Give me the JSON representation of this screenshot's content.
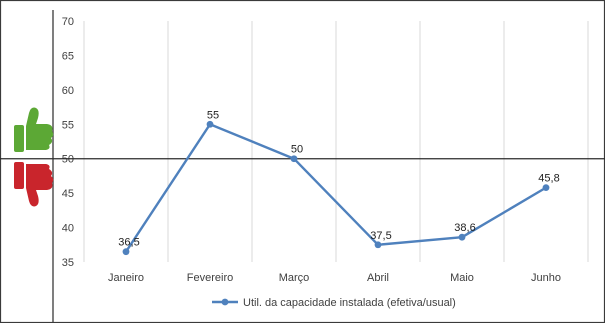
{
  "chart_data": {
    "type": "line",
    "categories": [
      "Janeiro",
      "Fevereiro",
      "Março",
      "Abril",
      "Maio",
      "Junho"
    ],
    "series": [
      {
        "name": "Util. da capacidade instalada (efetiva/usual)",
        "values": [
          36.5,
          55,
          50,
          37.5,
          38.6,
          45.8
        ],
        "value_labels": [
          "36,5",
          "55",
          "50",
          "37,5",
          "38,6",
          "45,8"
        ],
        "color": "#4F81BD"
      }
    ],
    "ylim": [
      35,
      70
    ],
    "yticks": [
      35,
      40,
      45,
      50,
      55,
      60,
      65,
      70
    ],
    "reference_line": 50,
    "grid": "vertical",
    "legend": "bottom",
    "icons": {
      "above": {
        "name": "thumbs-up-icon",
        "color": "#5CA835"
      },
      "below": {
        "name": "thumbs-down-icon",
        "color": "#C9252C"
      }
    }
  }
}
